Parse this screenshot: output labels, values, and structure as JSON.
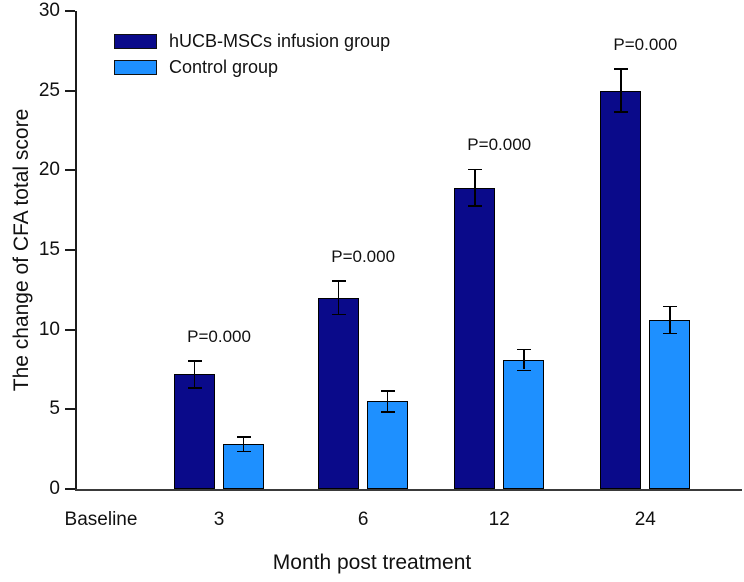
{
  "chart_data": {
    "type": "bar",
    "title": "",
    "xlabel": "Month post treatment",
    "ylabel": "The change of CFA total score",
    "categories": [
      "Baseline",
      "3",
      "6",
      "12",
      "24"
    ],
    "series": [
      {
        "name": "hUCB-MSCs infusion group",
        "color": "#0a0a8a",
        "values": [
          null,
          7.2,
          12.0,
          18.9,
          25.0
        ],
        "errors": [
          null,
          0.8,
          1.0,
          1.1,
          1.3
        ]
      },
      {
        "name": "Control group",
        "color": "#1e90ff",
        "values": [
          null,
          2.8,
          5.5,
          8.1,
          10.6
        ],
        "errors": [
          null,
          0.4,
          0.6,
          0.6,
          0.8
        ]
      }
    ],
    "p_labels": [
      "",
      "P=0.000",
      "P=0.000",
      "P=0.000",
      "P=0.000"
    ],
    "ylim": [
      0,
      30
    ],
    "yticks": [
      0,
      5,
      10,
      15,
      20,
      25,
      30
    ],
    "grid": false,
    "legend_position": "top-left",
    "axis_color": "#1c1c1c",
    "error_bar_color": "#000000",
    "text_color": "#111111"
  }
}
